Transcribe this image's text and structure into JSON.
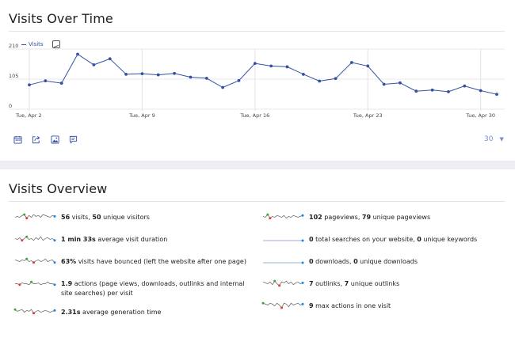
{
  "visits_over_time": {
    "title": "Visits Over Time",
    "legend_label": "Visits",
    "period_value": "30",
    "chart_data": {
      "type": "line",
      "series": [
        {
          "name": "Visits",
          "values": [
            85,
            99,
            91,
            192,
            155,
            176,
            122,
            124,
            120,
            125,
            112,
            108,
            76,
            100,
            160,
            151,
            148,
            122,
            98,
            107,
            163,
            151,
            87,
            92,
            63,
            67,
            61,
            81,
            65,
            52
          ]
        }
      ],
      "x_tick_labels": [
        "Tue, Apr 2",
        "Tue, Apr 9",
        "Tue, Apr 16",
        "Tue, Apr 23",
        "Tue, Apr 30"
      ],
      "y_tick_labels": [
        "210",
        "105",
        "0"
      ],
      "ylim": [
        0,
        210
      ],
      "grid": true,
      "legend_position": "top-left",
      "color": "#3450a3"
    }
  },
  "visits_overview": {
    "title": "Visits Overview",
    "metrics_left": [
      {
        "value1": "56",
        "text1": " visits, ",
        "value2": "50",
        "text2": " unique visitors"
      },
      {
        "value1": "1 min 33s",
        "text1": " average visit duration",
        "value2": "",
        "text2": ""
      },
      {
        "value1": "63%",
        "text1": " visits have bounced (left the website after one page)",
        "value2": "",
        "text2": ""
      },
      {
        "value1": "1.9",
        "text1": " actions (page views, downloads, outlinks and internal",
        "value2": "",
        "text2": ""
      },
      {
        "value1": "2.31s",
        "text1": " average generation time",
        "value2": "",
        "text2": ""
      }
    ],
    "metric_left_4_line2": "site searches) per visit",
    "metrics_right": [
      {
        "value1": "102",
        "text1": " pageviews, ",
        "value2": "79",
        "text2": " unique pageviews"
      },
      {
        "value1": "0",
        "text1": " total searches on your website, ",
        "value2": "0",
        "text2": " unique keywords"
      },
      {
        "value1": "0",
        "text1": " downloads, ",
        "value2": "0",
        "text2": " unique downloads"
      },
      {
        "value1": "7",
        "text1": " outlinks, ",
        "value2": "7",
        "text2": " unique outlinks"
      },
      {
        "value1": "9",
        "text1": " max actions in one visit",
        "value2": "",
        "text2": ""
      }
    ]
  },
  "footer_icons": [
    "calendar-icon",
    "export-icon",
    "image-icon",
    "annotation-icon"
  ],
  "colors": {
    "accent": "#3450a3",
    "spark_line": "#6f6f6f",
    "spark_min": "#e53935",
    "spark_max": "#43a047",
    "spark_last": "#1e88e5"
  }
}
